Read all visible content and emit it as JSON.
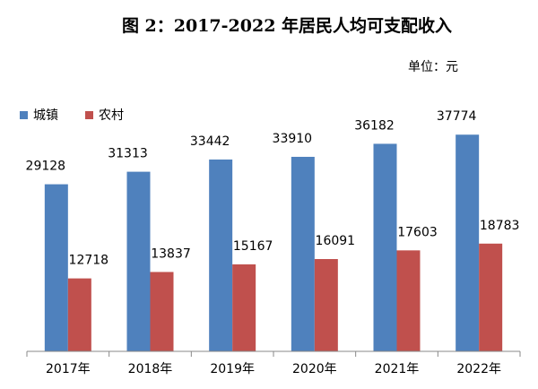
{
  "chart_data": {
    "type": "bar",
    "title": "图 2：2017-2022 年居民人均可支配收入",
    "unit": "单位：元",
    "categories": [
      "2017年",
      "2018年",
      "2019年",
      "2020年",
      "2021年",
      "2022年"
    ],
    "series": [
      {
        "name": "城镇",
        "color": "#4f81bd",
        "values": [
          29128,
          31313,
          33442,
          33910,
          36182,
          37774
        ]
      },
      {
        "name": "农村",
        "color": "#c0504d",
        "values": [
          12718,
          13837,
          15167,
          16091,
          17603,
          18783
        ]
      }
    ],
    "ylim": [
      0,
      40000
    ]
  }
}
